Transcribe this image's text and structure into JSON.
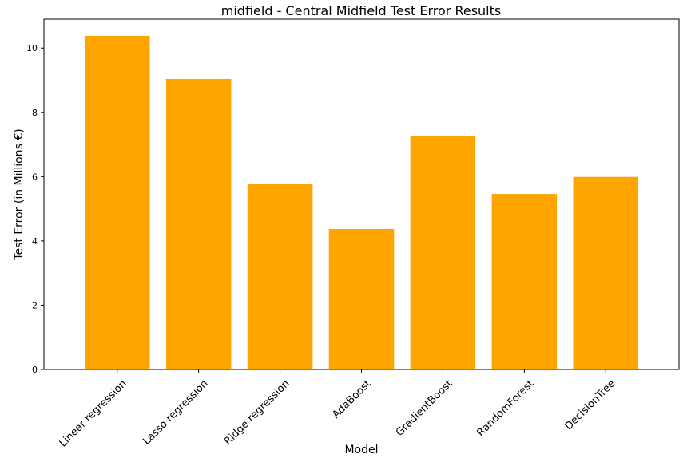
{
  "chart_data": {
    "type": "bar",
    "title": "midfield - Central Midfield Test Error Results",
    "xlabel": "Model",
    "ylabel": "Test Error (in Millions €)",
    "categories": [
      "Linear regression",
      "Lasso regression",
      "Ridge regression",
      "AdaBoost",
      "GradientBoost",
      "RandomForest",
      "DecisionTree"
    ],
    "values": [
      10.38,
      9.04,
      5.76,
      4.37,
      7.25,
      5.46,
      5.99
    ],
    "ylim": [
      0,
      10.9
    ],
    "yticks": [
      0,
      2,
      4,
      6,
      8,
      10
    ],
    "bar_color": "#ffa500",
    "grid": false,
    "legend": "none"
  }
}
